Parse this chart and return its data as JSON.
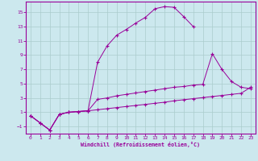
{
  "xlabel": "Windchill (Refroidissement éolien,°C)",
  "bg_color": "#cce8ee",
  "line_color": "#990099",
  "grid_color": "#aacccc",
  "xlim": [
    -0.5,
    23.5
  ],
  "ylim": [
    -2.0,
    16.5
  ],
  "xticks": [
    0,
    1,
    2,
    3,
    4,
    5,
    6,
    7,
    8,
    9,
    10,
    11,
    12,
    13,
    14,
    15,
    16,
    17,
    18,
    19,
    20,
    21,
    22,
    23
  ],
  "yticks": [
    -1,
    1,
    3,
    5,
    7,
    9,
    11,
    13,
    15
  ],
  "curve_top_x": [
    0,
    1,
    2,
    3,
    4,
    5,
    6,
    7,
    8,
    9,
    10,
    11,
    12,
    13,
    14,
    15,
    16,
    17
  ],
  "curve_top_y": [
    0.5,
    -0.5,
    -1.5,
    0.7,
    1.0,
    1.1,
    1.2,
    8.0,
    10.3,
    11.8,
    12.6,
    13.5,
    14.3,
    15.5,
    15.8,
    15.7,
    14.4,
    13.0
  ],
  "curve_mid_x": [
    0,
    1,
    2,
    3,
    4,
    5,
    6,
    7,
    8,
    9,
    10,
    11,
    12,
    13,
    14,
    15,
    16,
    17,
    18,
    19,
    20,
    21,
    22,
    23
  ],
  "curve_mid_y": [
    0.5,
    -0.5,
    -1.5,
    0.7,
    1.0,
    1.1,
    1.2,
    2.8,
    3.0,
    3.3,
    3.5,
    3.7,
    3.9,
    4.1,
    4.3,
    4.5,
    4.6,
    4.8,
    4.9,
    9.2,
    7.0,
    5.3,
    4.5,
    4.3
  ],
  "curve_bot_x": [
    0,
    1,
    2,
    3,
    4,
    5,
    6,
    7,
    8,
    9,
    10,
    11,
    12,
    13,
    14,
    15,
    16,
    17,
    18,
    19,
    20,
    21,
    22,
    23
  ],
  "curve_bot_y": [
    0.5,
    -0.5,
    -1.5,
    0.7,
    1.0,
    1.1,
    1.2,
    1.35,
    1.5,
    1.65,
    1.8,
    1.95,
    2.1,
    2.25,
    2.4,
    2.6,
    2.75,
    2.9,
    3.05,
    3.2,
    3.35,
    3.5,
    3.65,
    4.5
  ]
}
